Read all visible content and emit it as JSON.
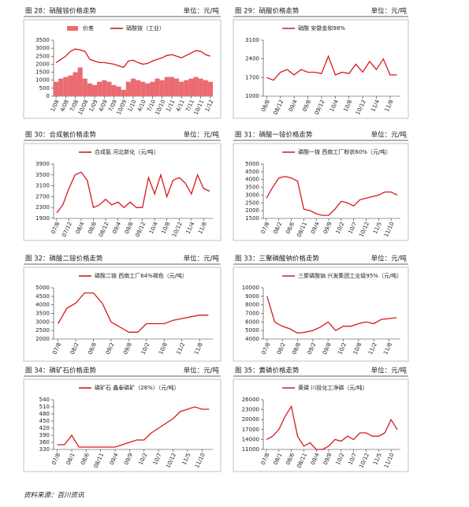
{
  "chart_data": [
    {
      "type": "combo",
      "title": "图 28：硝酸铵价格走势",
      "unit": "单位：元/吨",
      "categories": [
        "1/08",
        null,
        "4/08",
        null,
        "7/08",
        null,
        "10/08",
        null,
        "1/09",
        null,
        "4/09",
        null,
        "7/09",
        null,
        "10/09",
        null,
        "1/10",
        null,
        "4/10",
        null,
        "7/10",
        null,
        "10/10",
        null,
        "1/11",
        null,
        "4/11",
        null,
        "7/11",
        null,
        "10/11",
        null,
        "1/12"
      ],
      "series": [
        {
          "name": "价差",
          "kind": "bar",
          "color": "#ea6b70",
          "values": [
            900,
            1100,
            1200,
            1300,
            1500,
            1800,
            1100,
            800,
            700,
            900,
            1000,
            900,
            700,
            600,
            400,
            900,
            1100,
            1000,
            900,
            800,
            900,
            1100,
            1000,
            1200,
            1200,
            1100,
            900,
            1000,
            1100,
            1200,
            1100,
            1000,
            900
          ]
        },
        {
          "name": "硝酸铵（工业）",
          "kind": "line",
          "color": "#d7191c",
          "values": [
            2100,
            2300,
            2500,
            2800,
            2950,
            2900,
            2800,
            2300,
            2200,
            2100,
            2100,
            2050,
            2000,
            1900,
            1800,
            2200,
            2250,
            2100,
            2000,
            2050,
            2200,
            2300,
            2400,
            2550,
            2600,
            2500,
            2400,
            2550,
            2700,
            2850,
            2800,
            2600,
            2500
          ]
        }
      ],
      "ylim": [
        0,
        3500
      ],
      "yticks": [
        0,
        500,
        1000,
        1500,
        2000,
        2500,
        3000,
        3500
      ]
    },
    {
      "type": "line",
      "title": "图 29：硝酸价格走势",
      "unit": "单位：元/吨",
      "categories": [
        "08/8",
        null,
        "08/12",
        null,
        "09/4",
        null,
        "09/8",
        null,
        "09/12",
        null,
        "10/4",
        null,
        "10/8",
        null,
        "10/12",
        null,
        "11/4",
        null,
        "11/8",
        null
      ],
      "series": [
        {
          "name": "硝酸 安徽金和98%",
          "color": "#d7191c",
          "values": [
            1700,
            1600,
            1900,
            2000,
            1800,
            2000,
            1900,
            1900,
            1850,
            2500,
            1800,
            1900,
            1850,
            2200,
            1900,
            2300,
            2000,
            2400,
            1800,
            1800
          ]
        }
      ],
      "ylim": [
        1000,
        3100
      ],
      "yticks": [
        1000,
        1700,
        2400,
        3100
      ]
    },
    {
      "type": "line",
      "title": "图 30：合成氨价格走势",
      "unit": "单位：元/吨",
      "categories": [
        "07/8",
        null,
        "07/12",
        null,
        "08/4",
        null,
        "08/8",
        null,
        "08/12",
        null,
        "09/4",
        null,
        "09/8",
        null,
        "09/12",
        null,
        "10/4",
        null,
        "10/8",
        null,
        "10/12",
        null,
        "11/4",
        null,
        "11/8",
        null
      ],
      "series": [
        {
          "name": "合成氨 河北新化（元/吨）",
          "color": "#d7191c",
          "values": [
            2100,
            2400,
            3000,
            3500,
            3600,
            3300,
            2300,
            2400,
            2600,
            2400,
            2500,
            2300,
            2500,
            2300,
            2300,
            3400,
            2800,
            3500,
            2700,
            3300,
            3400,
            3200,
            2800,
            3500,
            3000,
            2900
          ]
        }
      ],
      "ylim": [
        1900,
        3900
      ],
      "yticks": [
        1900,
        2300,
        2700,
        3100,
        3500,
        3900
      ]
    },
    {
      "type": "line",
      "title": "图 31：磷酸一铵价格走势",
      "unit": "单位：元/吨",
      "categories": [
        "07/8",
        null,
        "08/2",
        null,
        "08/6",
        null,
        "08/11",
        null,
        "09/4",
        null,
        "09/9",
        null,
        "10/2",
        null,
        "10/7",
        null,
        "10/12",
        null,
        "11/5",
        null,
        "11/10",
        null
      ],
      "series": [
        {
          "name": "磷酸一铵 西南工厂粉状60%（元/吨）",
          "color": "#d7191c",
          "values": [
            2800,
            3500,
            4100,
            4200,
            4100,
            3900,
            2100,
            2000,
            1800,
            1700,
            1700,
            2100,
            2600,
            2500,
            2300,
            2700,
            2800,
            2900,
            3000,
            3200,
            3200,
            3000
          ]
        }
      ],
      "ylim": [
        1500,
        5000
      ],
      "yticks": [
        1500,
        2000,
        2500,
        3000,
        3500,
        4000,
        4500,
        5000
      ]
    },
    {
      "type": "line",
      "title": "图 32：磷酸二铵价格走势",
      "unit": "单位：元/吨",
      "categories": [
        "07/8",
        null,
        "08/2",
        null,
        "08/8",
        null,
        "09/2",
        null,
        "09/8",
        null,
        "10/2",
        null,
        "10/8",
        null,
        "11/2",
        null,
        "11/8",
        null
      ],
      "series": [
        {
          "name": "磷酸二铵 西南工厂64%褐色（元/吨）",
          "color": "#d7191c",
          "values": [
            2900,
            3800,
            4100,
            4700,
            4700,
            4100,
            3000,
            2700,
            2400,
            2400,
            2900,
            2900,
            2900,
            3100,
            3200,
            3300,
            3400,
            3400
          ]
        }
      ],
      "ylim": [
        2000,
        5000
      ],
      "yticks": [
        2000,
        2500,
        3000,
        3500,
        4000,
        4500,
        5000
      ]
    },
    {
      "type": "line",
      "title": "图 33：三聚磷酸钠价格走势",
      "unit": "单位：元/吨",
      "categories": [
        "07/8",
        null,
        "08/2",
        null,
        "08/8",
        null,
        "09/2",
        null,
        "09/8",
        null,
        "10/2",
        null,
        "10/8",
        null,
        "11/2",
        null,
        "11/8",
        null
      ],
      "series": [
        {
          "name": "三聚磷酸钠 兴发集团工业级95%（元/吨）",
          "color": "#d7191c",
          "values": [
            9000,
            6000,
            5500,
            5200,
            4700,
            4800,
            5000,
            5400,
            6000,
            5000,
            5500,
            5500,
            5800,
            6000,
            5800,
            6300,
            6400,
            6500
          ]
        }
      ],
      "ylim": [
        4000,
        10000
      ],
      "yticks": [
        4000,
        5000,
        6000,
        7000,
        8000,
        9000,
        10000
      ]
    },
    {
      "type": "line",
      "title": "图 34：磷矿石价格走势",
      "unit": "单位：元/吨",
      "categories": [
        "07/8",
        null,
        "08/1",
        null,
        "08/6",
        null,
        "08/11",
        null,
        "09/4",
        null,
        "09/9",
        null,
        "10/2",
        null,
        "10/7",
        null,
        "10/12",
        null,
        "11/5",
        null,
        "11/10",
        null
      ],
      "series": [
        {
          "name": "磷矿石 鑫泰磷矿（28%）（元/吨）",
          "color": "#d7191c",
          "values": [
            350,
            350,
            390,
            340,
            340,
            340,
            340,
            340,
            340,
            350,
            360,
            370,
            370,
            400,
            420,
            440,
            460,
            490,
            500,
            510,
            500,
            500
          ]
        }
      ],
      "ylim": [
        330,
        540
      ],
      "yticks": [
        330,
        360,
        390,
        420,
        450,
        480,
        510,
        540
      ]
    },
    {
      "type": "line",
      "title": "图 35：黄磷价格走势",
      "unit": "单位：元/吨",
      "categories": [
        "07/8",
        null,
        "08/1",
        null,
        "08/6",
        null,
        "08/11",
        null,
        "09/4",
        null,
        "09/9",
        null,
        "10/2",
        null,
        "10/7",
        null,
        "10/12",
        null,
        "11/5",
        null,
        "11/10",
        null
      ],
      "series": [
        {
          "name": "黄磷 川投化工净磷（元/吨）",
          "color": "#d7191c",
          "values": [
            14000,
            15000,
            17000,
            21000,
            24000,
            15000,
            12000,
            13000,
            11000,
            11000,
            12000,
            14000,
            13500,
            15000,
            14000,
            16000,
            16000,
            15000,
            15000,
            16000,
            20000,
            17000
          ]
        }
      ],
      "ylim": [
        11000,
        26000
      ],
      "yticks": [
        11000,
        14000,
        17000,
        20000,
        23000,
        26000
      ]
    }
  ],
  "source": "资料来源：百川资讯"
}
